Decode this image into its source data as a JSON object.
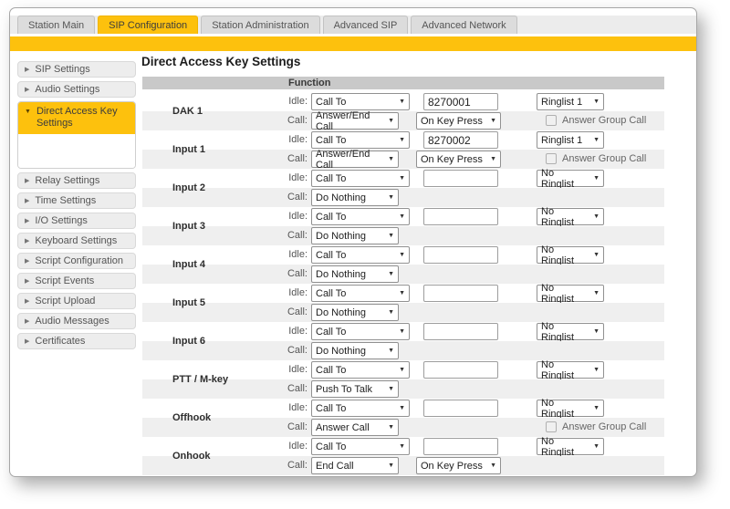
{
  "colors": {
    "accent_yellow": "#fdc10d",
    "table_header_bg": "#c9c9c9",
    "call_row_bg": "#efefef"
  },
  "tabs": [
    {
      "label": "Station Main",
      "active": false
    },
    {
      "label": "SIP Configuration",
      "active": true
    },
    {
      "label": "Station Administration",
      "active": false
    },
    {
      "label": "Advanced SIP",
      "active": false
    },
    {
      "label": "Advanced Network",
      "active": false
    }
  ],
  "sidebar": {
    "items": [
      {
        "label": "SIP Settings"
      },
      {
        "label": "Audio Settings"
      },
      {
        "label": "Direct Access Key Settings",
        "active": true
      },
      {
        "label": "Relay Settings"
      },
      {
        "label": "Time Settings"
      },
      {
        "label": "I/O Settings"
      },
      {
        "label": "Keyboard Settings"
      },
      {
        "label": "Script Configuration"
      },
      {
        "label": "Script Events"
      },
      {
        "label": "Script Upload"
      },
      {
        "label": "Audio Messages"
      },
      {
        "label": "Certificates"
      }
    ]
  },
  "main": {
    "title": "Direct Access Key Settings",
    "table": {
      "header": "Function",
      "labels": {
        "idle": "Idle:",
        "call": "Call:",
        "answer_group": "Answer Group Call"
      },
      "rows": [
        {
          "name": "DAK 1",
          "idle_action": "Call To",
          "idle_value": "8270001",
          "ringlist": "Ringlist 1",
          "call_action": "Answer/End Call",
          "call_trigger": "On Key Press"
        },
        {
          "name": "Input 1",
          "idle_action": "Call To",
          "idle_value": "8270002",
          "ringlist": "Ringlist 1",
          "call_action": "Answer/End Call",
          "call_trigger": "On Key Press"
        },
        {
          "name": "Input 2",
          "idle_action": "Call To",
          "idle_value": "",
          "ringlist": "No Ringlist",
          "call_action": "Do Nothing"
        },
        {
          "name": "Input 3",
          "idle_action": "Call To",
          "idle_value": "",
          "ringlist": "No Ringlist",
          "call_action": "Do Nothing"
        },
        {
          "name": "Input 4",
          "idle_action": "Call To",
          "idle_value": "",
          "ringlist": "No Ringlist",
          "call_action": "Do Nothing"
        },
        {
          "name": "Input 5",
          "idle_action": "Call To",
          "idle_value": "",
          "ringlist": "No Ringlist",
          "call_action": "Do Nothing"
        },
        {
          "name": "Input 6",
          "idle_action": "Call To",
          "idle_value": "",
          "ringlist": "No Ringlist",
          "call_action": "Do Nothing"
        },
        {
          "name": "PTT / M-key",
          "idle_action": "Call To",
          "idle_value": "",
          "ringlist": "No Ringlist",
          "call_action": "Push To Talk"
        },
        {
          "name": "Offhook",
          "idle_action": "Call To",
          "idle_value": "",
          "ringlist": "No Ringlist",
          "call_action": "Answer Call"
        },
        {
          "name": "Onhook",
          "idle_action": "Call To",
          "idle_value": "",
          "ringlist": "No Ringlist",
          "call_action": "End Call",
          "call_trigger": "On Key Press"
        }
      ]
    }
  }
}
